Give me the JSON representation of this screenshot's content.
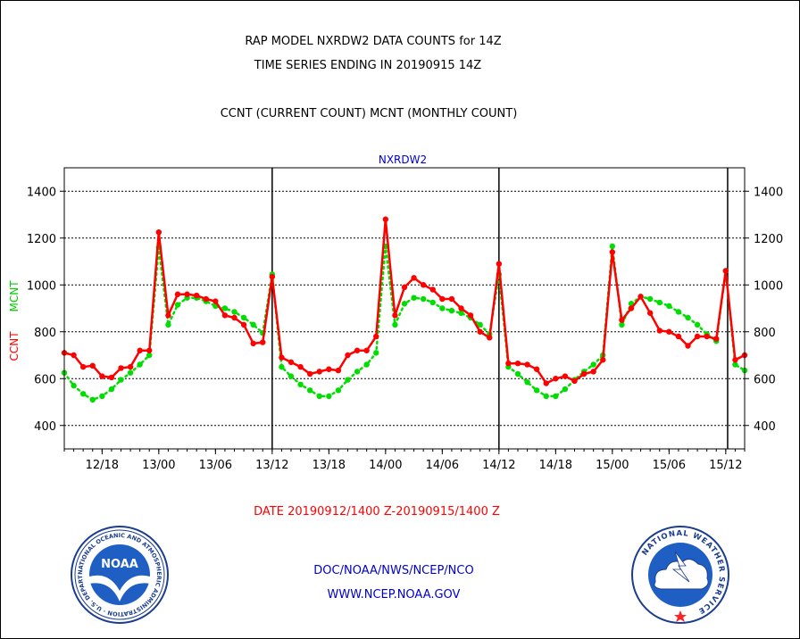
{
  "header": {
    "title_line1": "RAP MODEL NXRDW2 DATA COUNTS for 14Z",
    "title_line2": "TIME SERIES ENDING IN 20190915 14Z",
    "subtitle": "CCNT (CURRENT COUNT) MCNT (MONTHLY COUNT)"
  },
  "footer": {
    "date_range": "DATE 20190912/1400 Z-20190915/1400 Z",
    "org_line": "DOC/NOAA/NWS/NCEP/NCO",
    "url_line": "WWW.NCEP.NOAA.GOV",
    "noaa_logo_text": "NOAA",
    "noaa_ring_text": "NATIONAL OCEANIC AND ATMOSPHERIC ADMINISTRATION · U.S. DEPARTMENT OF COMMERCE",
    "nws_ring_text": "NATIONAL WEATHER SERVICE"
  },
  "chart_data": {
    "type": "line",
    "title": "NXRDW2",
    "ylabel_ccnt": "CCNT",
    "ylabel_mcnt": "MCNT",
    "ylim": [
      300,
      1500
    ],
    "yticks": [
      400,
      600,
      800,
      1000,
      1200,
      1400
    ],
    "xlim": [
      0,
      72
    ],
    "xtick_positions": [
      4,
      10,
      16,
      22,
      28,
      34,
      40,
      46,
      52,
      58,
      64,
      70
    ],
    "xtick_labels": [
      "12/18",
      "13/00",
      "13/06",
      "13/12",
      "13/18",
      "14/00",
      "14/06",
      "14/12",
      "14/18",
      "15/00",
      "15/06",
      "15/12"
    ],
    "day_separators": [
      22,
      46,
      70.2
    ],
    "grid": true,
    "series": [
      {
        "name": "CCNT",
        "color": "#ff0000",
        "x": [
          0,
          1,
          2,
          3,
          4,
          5,
          6,
          7,
          8,
          9,
          10,
          11,
          12,
          13,
          14,
          15,
          16,
          17,
          18,
          19,
          20,
          21,
          22,
          23,
          24,
          25,
          26,
          27,
          28,
          29,
          30,
          31,
          32,
          33,
          34,
          35,
          36,
          37,
          38,
          39,
          40,
          41,
          42,
          43,
          44,
          45,
          46,
          47,
          48,
          49,
          50,
          51,
          52,
          53,
          54,
          55,
          56,
          57,
          58,
          59,
          60,
          61,
          62,
          63,
          64,
          65,
          66,
          67,
          68,
          69,
          70,
          71,
          72
        ],
        "values": [
          710,
          700,
          650,
          655,
          610,
          605,
          645,
          650,
          720,
          720,
          1225,
          870,
          960,
          960,
          955,
          940,
          930,
          870,
          860,
          830,
          750,
          755,
          1035,
          690,
          670,
          650,
          620,
          630,
          640,
          635,
          700,
          720,
          720,
          780,
          1280,
          870,
          990,
          1030,
          1000,
          980,
          940,
          940,
          900,
          870,
          800,
          775,
          1090,
          665,
          665,
          660,
          640,
          580,
          600,
          610,
          590,
          620,
          630,
          680,
          1140,
          850,
          900,
          950,
          880,
          805,
          800,
          780,
          740,
          780,
          780,
          770,
          1060,
          680,
          700
        ]
      },
      {
        "name": "MCNT",
        "color": "#00dd00",
        "x": [
          0,
          1,
          2,
          3,
          4,
          5,
          6,
          7,
          8,
          9,
          10,
          11,
          12,
          13,
          14,
          15,
          16,
          17,
          18,
          19,
          20,
          21,
          22,
          23,
          24,
          25,
          26,
          27,
          28,
          29,
          30,
          31,
          32,
          33,
          34,
          35,
          36,
          37,
          38,
          39,
          40,
          41,
          42,
          43,
          44,
          45,
          46,
          47,
          48,
          49,
          50,
          51,
          52,
          53,
          54,
          55,
          56,
          57,
          58,
          59,
          60,
          61,
          62,
          63,
          64,
          65,
          66,
          67,
          68,
          69,
          70,
          71,
          72
        ],
        "values": [
          625,
          570,
          535,
          510,
          525,
          555,
          595,
          625,
          660,
          700,
          1160,
          830,
          915,
          945,
          945,
          930,
          910,
          900,
          885,
          860,
          830,
          795,
          1045,
          650,
          610,
          575,
          550,
          525,
          525,
          550,
          595,
          630,
          660,
          710,
          1165,
          830,
          920,
          945,
          940,
          925,
          900,
          890,
          880,
          860,
          830,
          790,
          1045,
          650,
          620,
          585,
          550,
          525,
          525,
          555,
          595,
          630,
          660,
          700,
          1165,
          830,
          920,
          950,
          940,
          925,
          910,
          885,
          860,
          830,
          790,
          760,
          1060,
          660,
          635
        ]
      }
    ]
  }
}
